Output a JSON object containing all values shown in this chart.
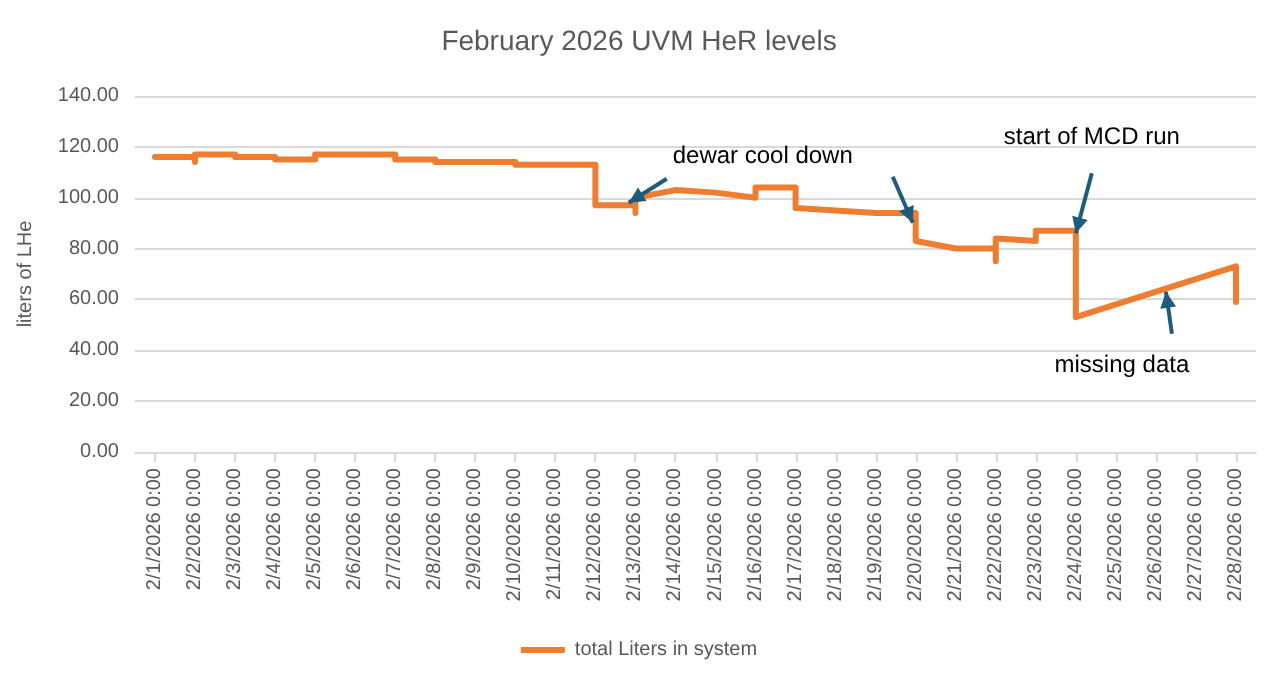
{
  "chart_data": {
    "type": "line",
    "title": "February 2026 UVM HeR levels",
    "ylabel": "liters of LHe",
    "x": [
      "2026-02-01",
      "2026-02-02",
      "2026-02-02",
      "2026-02-02",
      "2026-02-03",
      "2026-02-03",
      "2026-02-04",
      "2026-02-04",
      "2026-02-05",
      "2026-02-05",
      "2026-02-06",
      "2026-02-06",
      "2026-02-07",
      "2026-02-07",
      "2026-02-08",
      "2026-02-08",
      "2026-02-10",
      "2026-02-10",
      "2026-02-12",
      "2026-02-12",
      "2026-02-13",
      "2026-02-13",
      "2026-02-13",
      "2026-02-14",
      "2026-02-15",
      "2026-02-16",
      "2026-02-16",
      "2026-02-17",
      "2026-02-17",
      "2026-02-18",
      "2026-02-19",
      "2026-02-20",
      "2026-02-20",
      "2026-02-21",
      "2026-02-22",
      "2026-02-22",
      "2026-02-22",
      "2026-02-23",
      "2026-02-23",
      "2026-02-24",
      "2026-02-24",
      "2026-02-28",
      "2026-02-28"
    ],
    "series": [
      {
        "name": "total Liters in system",
        "color": "#ed7d31",
        "values": [
          116,
          116,
          114,
          117,
          117,
          116,
          116,
          115,
          115,
          117,
          117,
          117,
          117,
          115,
          115,
          114,
          114,
          113,
          113,
          97,
          97,
          94,
          100,
          103,
          102,
          100,
          104,
          104,
          96,
          95,
          94,
          94,
          83,
          80,
          80,
          75,
          84,
          83,
          87,
          87,
          53,
          73,
          59
        ]
      }
    ],
    "xlim": [
      "2026-01-31T12:00",
      "2026-02-28T12:00"
    ],
    "xticks": [
      {
        "value": "2026-02-01",
        "label": "2/1/2026 0:00"
      },
      {
        "value": "2026-02-02",
        "label": "2/2/2026 0:00"
      },
      {
        "value": "2026-02-03",
        "label": "2/3/2026 0:00"
      },
      {
        "value": "2026-02-04",
        "label": "2/4/2026 0:00"
      },
      {
        "value": "2026-02-05",
        "label": "2/5/2026 0:00"
      },
      {
        "value": "2026-02-06",
        "label": "2/6/2026 0:00"
      },
      {
        "value": "2026-02-07",
        "label": "2/7/2026 0:00"
      },
      {
        "value": "2026-02-08",
        "label": "2/8/2026 0:00"
      },
      {
        "value": "2026-02-09",
        "label": "2/9/2026 0:00"
      },
      {
        "value": "2026-02-10",
        "label": "2/10/2026 0:00"
      },
      {
        "value": "2026-02-11",
        "label": "2/11/2026 0:00"
      },
      {
        "value": "2026-02-12",
        "label": "2/12/2026 0:00"
      },
      {
        "value": "2026-02-13",
        "label": "2/13/2026 0:00"
      },
      {
        "value": "2026-02-14",
        "label": "2/14/2026 0:00"
      },
      {
        "value": "2026-02-15",
        "label": "2/15/2026 0:00"
      },
      {
        "value": "2026-02-16",
        "label": "2/16/2026 0:00"
      },
      {
        "value": "2026-02-17",
        "label": "2/17/2026 0:00"
      },
      {
        "value": "2026-02-18",
        "label": "2/18/2026 0:00"
      },
      {
        "value": "2026-02-19",
        "label": "2/19/2026 0:00"
      },
      {
        "value": "2026-02-20",
        "label": "2/20/2026 0:00"
      },
      {
        "value": "2026-02-21",
        "label": "2/21/2026 0:00"
      },
      {
        "value": "2026-02-22",
        "label": "2/22/2026 0:00"
      },
      {
        "value": "2026-02-23",
        "label": "2/23/2026 0:00"
      },
      {
        "value": "2026-02-24",
        "label": "2/24/2026 0:00"
      },
      {
        "value": "2026-02-25",
        "label": "2/25/2026 0:00"
      },
      {
        "value": "2026-02-26",
        "label": "2/26/2026 0:00"
      },
      {
        "value": "2026-02-27",
        "label": "2/27/2026 0:00"
      },
      {
        "value": "2026-02-28",
        "label": "2/28/2026 0:00"
      }
    ],
    "ylim": [
      0,
      140
    ],
    "yticks": [
      {
        "value": 0,
        "label": "0.00"
      },
      {
        "value": 20,
        "label": "20.00"
      },
      {
        "value": 40,
        "label": "40.00"
      },
      {
        "value": 60,
        "label": "60.00"
      },
      {
        "value": 80,
        "label": "80.00"
      },
      {
        "value": 100,
        "label": "100.00"
      },
      {
        "value": 120,
        "label": "120.00"
      },
      {
        "value": 140,
        "label": "140.00"
      }
    ],
    "annotations": [
      {
        "text": "dewar cool down",
        "x": "2026-02-12T20:00",
        "y": 98
      },
      {
        "text": "start of MCD run",
        "x": "2026-02-24",
        "y": 86
      },
      {
        "text": "missing data",
        "x": "2026-02-26T06:00",
        "y": 63
      }
    ],
    "grid": "y",
    "legend": "bottom",
    "marker": "none",
    "line_style": "solid"
  }
}
